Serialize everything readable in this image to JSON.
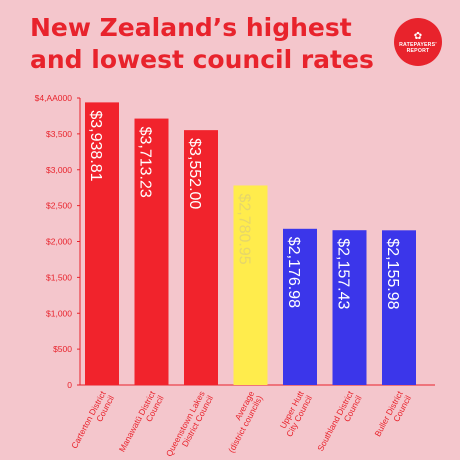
{
  "title": "New Zealand’s highest and lowest council rates",
  "logo": {
    "line1": "RATEPAYERS’",
    "line2": "REPORT"
  },
  "colors": {
    "background": "#f4c6cc",
    "title": "#e8232c",
    "high": "#f1232c",
    "average": "#ffec4c",
    "low": "#3b36ea",
    "axis": "#e8232c",
    "bar_label": "#ffffff",
    "average_label": "#e6d66a"
  },
  "chart_data": {
    "type": "bar",
    "title": "New Zealand’s highest and lowest council rates",
    "xlabel": "",
    "ylabel": "",
    "ylim": [
      0,
      4000
    ],
    "yticks": [
      0,
      500,
      1000,
      1500,
      2000,
      2500,
      3000,
      3500,
      4000
    ],
    "ytick_labels": [
      "0",
      "$500",
      "$1,000",
      "$1,500",
      "$2,000",
      "$2,500",
      "$3,000",
      "$3,500",
      "$4,AA000"
    ],
    "grid": false,
    "legend": "none",
    "categories": [
      [
        "Carterton District",
        "Council"
      ],
      [
        "Manawatū District",
        "Council"
      ],
      [
        "Queenstown Lakes",
        "District Council"
      ],
      [
        "Average",
        "(district councils)"
      ],
      [
        "Upper Hutt",
        "City Council"
      ],
      [
        "Southland District",
        "Council"
      ],
      [
        "Buller District",
        "Council"
      ]
    ],
    "values": [
      3938.81,
      3713.23,
      3552.0,
      2780.95,
      2176.98,
      2157.43,
      2155.98
    ],
    "value_labels": [
      "$3,938.81",
      "$3,713.23",
      "$3,552.00",
      "$2,780.95",
      "$2,176.98",
      "$2,157.43",
      "$2,155.98"
    ],
    "bar_colors": [
      "high",
      "high",
      "high",
      "average",
      "low",
      "low",
      "low"
    ]
  }
}
